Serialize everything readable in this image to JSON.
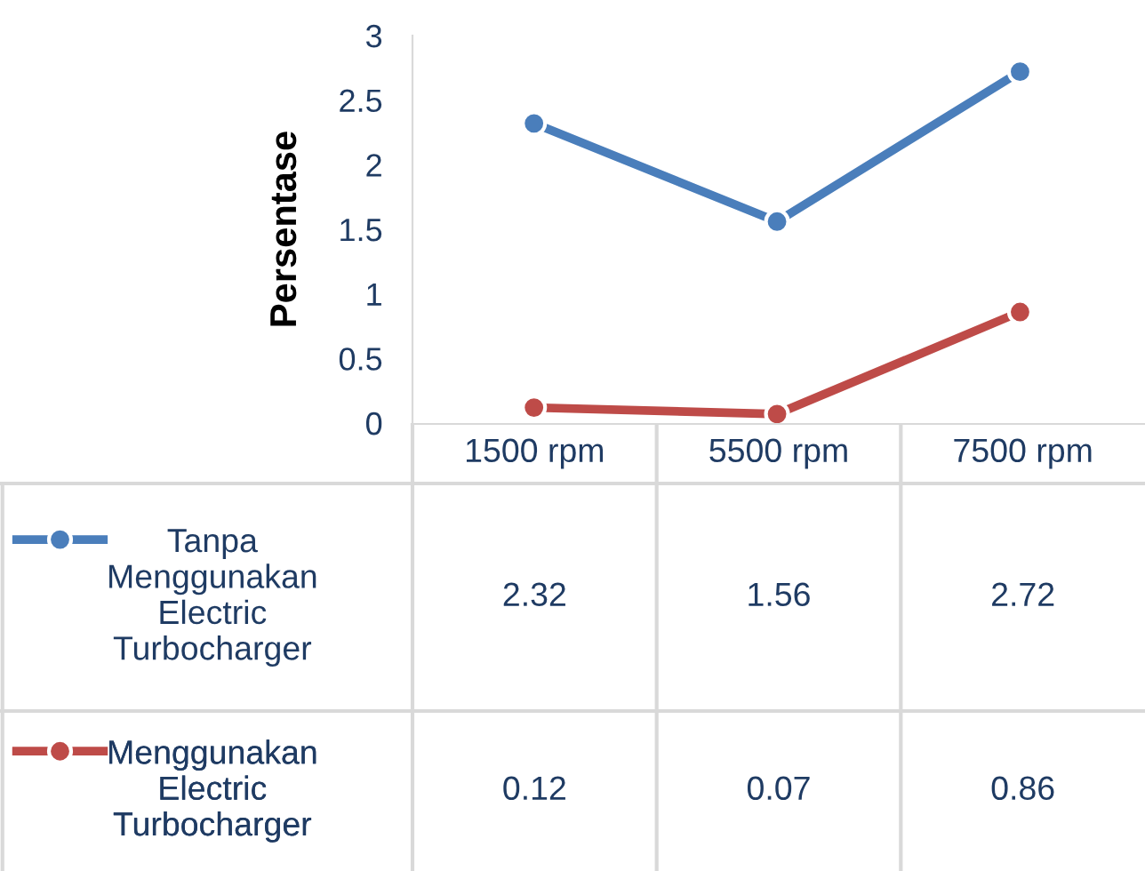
{
  "chart_data": {
    "type": "line",
    "ylabel": "Persentase",
    "categories": [
      "1500 rpm",
      "5500 rpm",
      "7500 rpm"
    ],
    "series": [
      {
        "name": "Tanpa Menggunakan Electric Turbocharger",
        "color": "#4a7ebb",
        "values": [
          2.32,
          1.56,
          2.72
        ]
      },
      {
        "name": "Menggunakan Electric Turbocharger",
        "color": "#be4b48",
        "values": [
          0.12,
          0.07,
          0.86
        ]
      }
    ],
    "ylim": [
      0,
      3
    ],
    "yticks": [
      0,
      0.5,
      1,
      1.5,
      2,
      2.5,
      3
    ],
    "grid": false,
    "legend": "bottom",
    "marker": "circle",
    "line_style": "solid",
    "data_labels": true
  }
}
